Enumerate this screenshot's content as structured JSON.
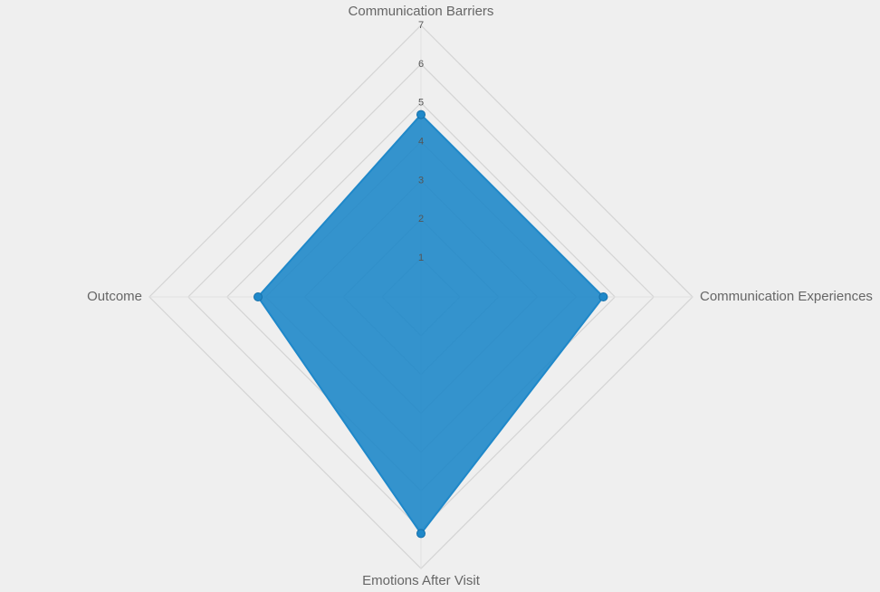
{
  "chart_data": {
    "type": "radar",
    "categories": [
      "Communication Barriers",
      "Communication Experiences",
      "Emotions After Visit",
      "Outcome"
    ],
    "values": [
      4.7,
      4.7,
      6.1,
      4.2
    ],
    "color": "#1f88c9",
    "rlim": [
      0,
      7
    ],
    "rticks": [
      1,
      2,
      3,
      4,
      5,
      6,
      7
    ],
    "grid": true
  }
}
